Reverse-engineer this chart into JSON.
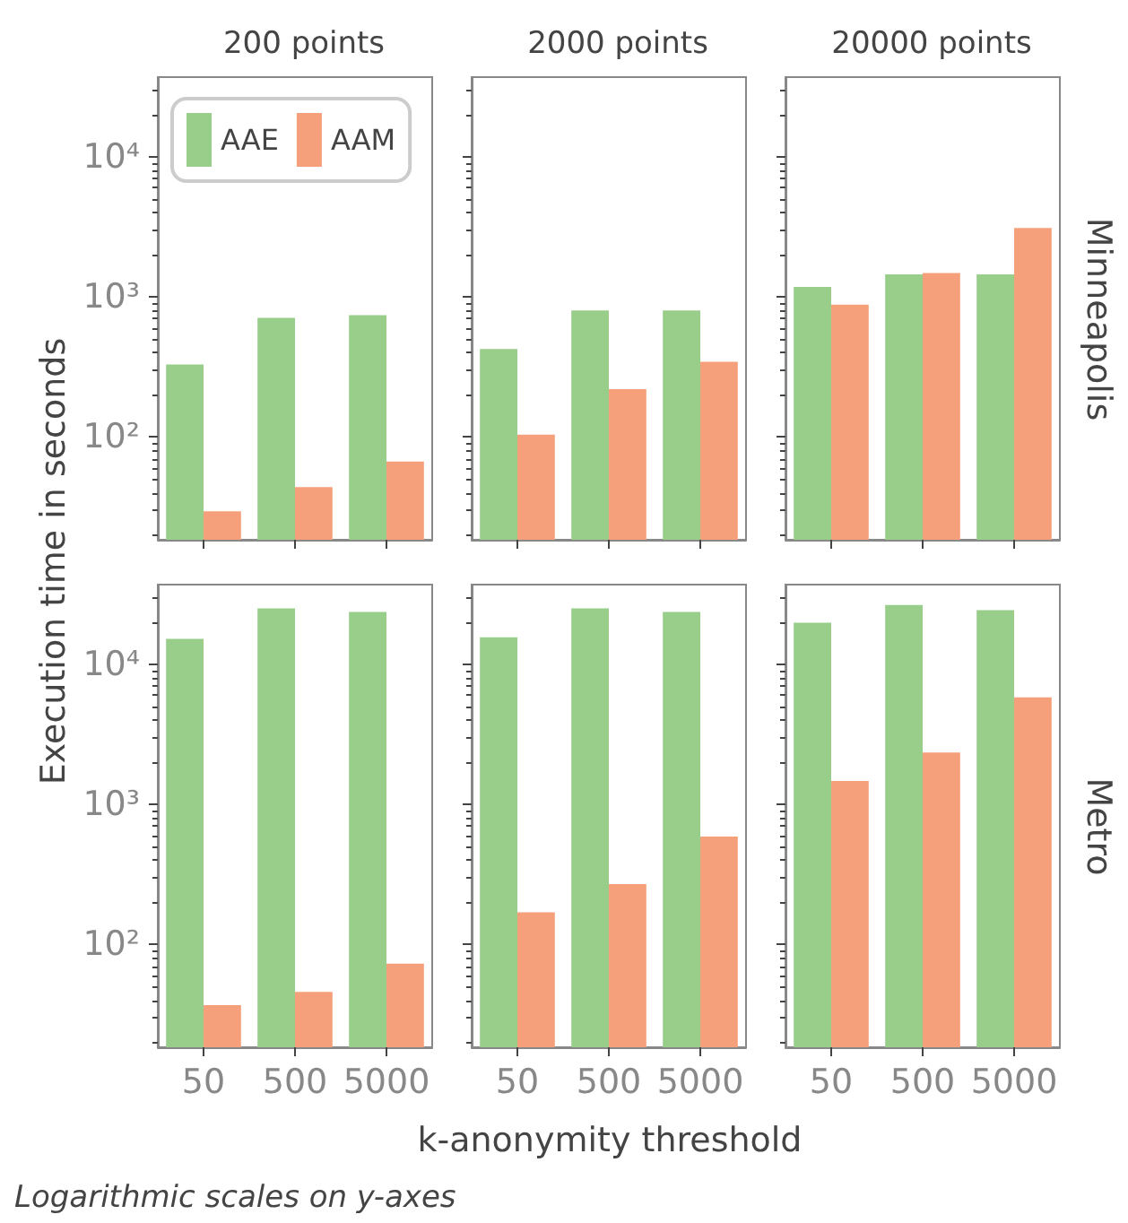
{
  "chart_data": [
    {
      "type": "bar",
      "title": "200 points",
      "ylabel": "Execution time in seconds",
      "categories": [
        "50",
        "500",
        "5000"
      ],
      "series": [
        {
          "name": "AAE",
          "color": "#98cd8a",
          "values": [
            330,
            710,
            740
          ]
        },
        {
          "name": "AAM",
          "color": "#f5a07b",
          "values": [
            29.5,
            44,
            67
          ]
        }
      ],
      "log": true,
      "ylim": [
        18.5,
        37000
      ],
      "yticks": [
        {
          "value": 100,
          "label": "10²"
        },
        {
          "value": 1000,
          "label": "10³"
        },
        {
          "value": 10000,
          "label": "10⁴"
        }
      ],
      "tick_labels": "y",
      "grid": false,
      "legend": "top left"
    },
    {
      "type": "bar",
      "title": "2000 points",
      "categories": [
        "50",
        "500",
        "5000"
      ],
      "series": [
        {
          "color": "#98cd8a",
          "values": [
            425,
            800,
            800
          ]
        },
        {
          "color": "#f5a07b",
          "values": [
            104,
            220,
            345
          ]
        }
      ],
      "log": true,
      "ylim": [
        18.5,
        37000
      ],
      "yticks": [
        {
          "value": 100,
          "label": null
        },
        {
          "value": 1000,
          "label": null
        },
        {
          "value": 10000,
          "label": null
        }
      ],
      "tick_labels": false,
      "grid": false
    },
    {
      "type": "bar",
      "title": "20000 points",
      "y2label": "Minneapolis",
      "categories": [
        "50",
        "500",
        "5000"
      ],
      "series": [
        {
          "color": "#98cd8a",
          "values": [
            1180,
            1450,
            1450
          ]
        },
        {
          "color": "#f5a07b",
          "values": [
            880,
            1480,
            3100
          ]
        }
      ],
      "log": true,
      "ylim": [
        18.5,
        37000
      ],
      "yticks": [
        {
          "value": 100,
          "label": null
        },
        {
          "value": 1000,
          "label": null
        },
        {
          "value": 10000,
          "label": null
        }
      ],
      "tick_labels": false,
      "grid": false
    },
    {
      "type": "bar",
      "annotations": [
        "Logarithmic scales on y-axes"
      ],
      "categories": [
        "50",
        "500",
        "5000"
      ],
      "series": [
        {
          "color": "#98cd8a",
          "values": [
            15200,
            25000,
            23600
          ]
        },
        {
          "color": "#f5a07b",
          "values": [
            37,
            46,
            73
          ]
        }
      ],
      "log": true,
      "ylim": [
        18.5,
        37000
      ],
      "yticks": [
        {
          "value": 100,
          "label": "10²"
        },
        {
          "value": 1000,
          "label": "10³"
        },
        {
          "value": 10000,
          "label": "10⁴"
        }
      ],
      "grid": false
    },
    {
      "type": "bar",
      "xlabel": "k-anonymity threshold",
      "categories": [
        "50",
        "500",
        "5000"
      ],
      "series": [
        {
          "color": "#98cd8a",
          "values": [
            15600,
            25000,
            23600
          ]
        },
        {
          "color": "#f5a07b",
          "values": [
            170,
            270,
            590
          ]
        }
      ],
      "log": true,
      "ylim": [
        18.5,
        37000
      ],
      "yticks": [
        {
          "value": 100,
          "label": null
        },
        {
          "value": 1000,
          "label": null
        },
        {
          "value": 10000,
          "label": null
        }
      ],
      "tick_labels": "x",
      "grid": false
    },
    {
      "type": "bar",
      "y2label": "Metro",
      "categories": [
        "50",
        "500",
        "5000"
      ],
      "series": [
        {
          "color": "#98cd8a",
          "values": [
            19800,
            26500,
            24300
          ]
        },
        {
          "color": "#f5a07b",
          "values": [
            1470,
            2350,
            5800
          ]
        }
      ],
      "log": true,
      "ylim": [
        18.5,
        37000
      ],
      "yticks": [
        {
          "value": 100,
          "label": null
        },
        {
          "value": 1000,
          "label": null
        },
        {
          "value": 10000,
          "label": null
        }
      ],
      "tick_labels": "x",
      "grid": false
    }
  ]
}
